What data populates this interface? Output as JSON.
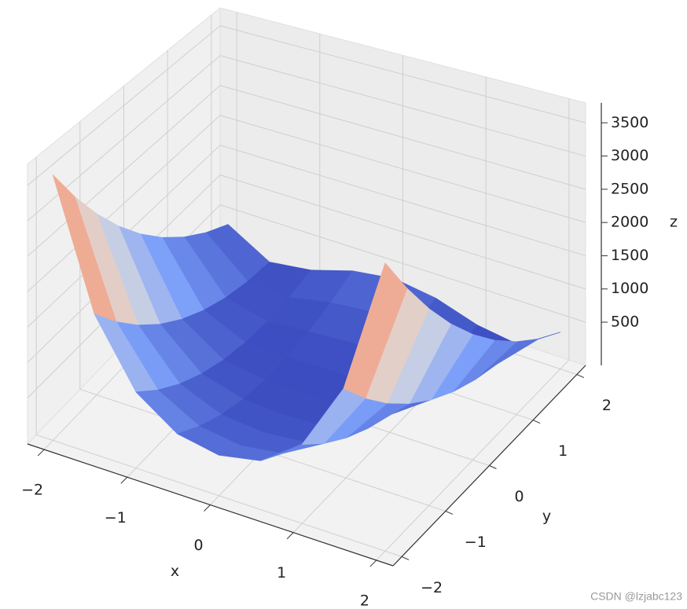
{
  "chart_data": {
    "type": "surface",
    "cmap": "coolwarm",
    "x": [
      -2,
      -1.5,
      -1,
      -0.5,
      0,
      0.5,
      1,
      1.5,
      2
    ],
    "y": [
      -2,
      -1.5,
      -1,
      -0.5,
      0,
      0.5,
      1,
      1.5,
      2
    ],
    "z": [
      [
        3609,
        1812.5,
        904,
        508.5,
        401,
        506.5,
        900,
        1806.5,
        3601
      ],
      [
        3034,
        1412.5,
        629,
        308.5,
        226,
        306.5,
        625,
        1406.5,
        3026
      ],
      [
        2509,
        1062.5,
        404,
        158.5,
        101,
        156.5,
        400,
        1056.5,
        2501
      ],
      [
        2034,
        762.5,
        229,
        58.5,
        26,
        56.5,
        225,
        756.5,
        2026
      ],
      [
        1609,
        512.5,
        104,
        8.5,
        1,
        6.5,
        100,
        506.5,
        1601
      ],
      [
        1234,
        312.5,
        29,
        8.5,
        26,
        6.5,
        25,
        306.5,
        1226
      ],
      [
        909,
        162.5,
        4,
        58.5,
        101,
        56.5,
        0,
        156.5,
        901
      ],
      [
        634,
        62.5,
        29,
        158.5,
        226,
        156.5,
        25,
        56.5,
        626
      ],
      [
        409,
        12.5,
        104,
        308.5,
        401,
        306.5,
        100,
        6.5,
        401
      ]
    ],
    "xlim": [
      -2.2,
      2.2
    ],
    "ylim": [
      -2.2,
      2.2
    ],
    "zlim": [
      -150,
      3800
    ],
    "xticks": [
      {
        "value": -2,
        "label": "−2"
      },
      {
        "value": -1,
        "label": "−1"
      },
      0,
      1,
      2
    ],
    "yticks": [
      {
        "value": -2,
        "label": "−2"
      },
      {
        "value": -1,
        "label": "−1"
      },
      0,
      1,
      2
    ],
    "zticks": [
      500,
      1000,
      1500,
      2000,
      2500,
      3000,
      3500
    ],
    "xlabel": "x",
    "ylabel": "y",
    "zlabel": "z",
    "grid": true,
    "watermark": "CSDN @lzjabc123"
  }
}
